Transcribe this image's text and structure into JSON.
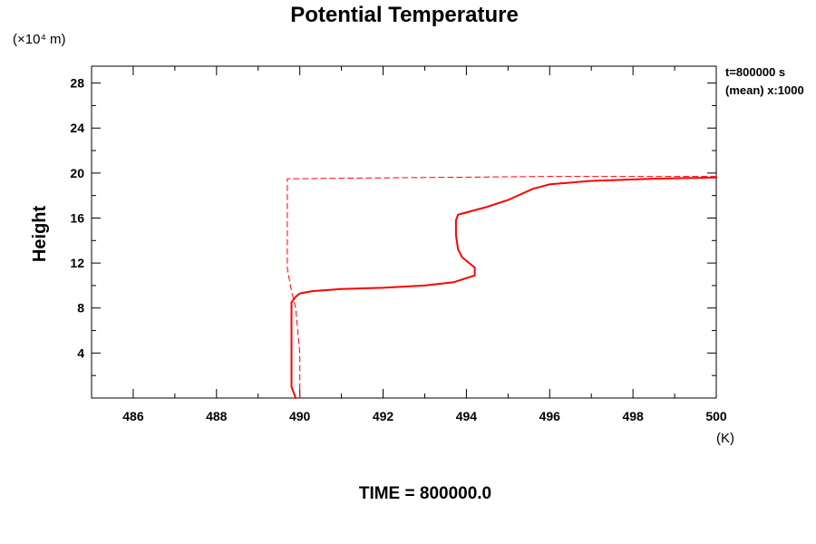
{
  "chart_data": {
    "type": "line",
    "title": "Potential Temperature",
    "ylabel": "Height",
    "y_unit_label": "(×10⁴ m)",
    "x_unit_label": "(K)",
    "xlim": [
      485,
      500
    ],
    "ylim": [
      0,
      29.5
    ],
    "x_ticks": [
      486,
      488,
      490,
      492,
      494,
      496,
      498,
      500
    ],
    "x_tick_labels": [
      "486",
      "488",
      "490",
      "492",
      "494",
      "496",
      "498",
      "500"
    ],
    "y_ticks": [
      4,
      8,
      12,
      16,
      20,
      24,
      28
    ],
    "y_tick_labels": [
      "4",
      "8",
      "12",
      "16",
      "20",
      "24",
      "28"
    ],
    "annotations": [
      "t=800000 s",
      "(mean) x:1000"
    ],
    "footer": "TIME = 800000.0",
    "grid": false,
    "colors": {
      "series": "#ff0000",
      "axes": "#000000"
    },
    "series": [
      {
        "style": "solid",
        "x": [
          489.9,
          489.8,
          489.8,
          489.8,
          489.8,
          489.9,
          490.0,
          490.3,
          491.0,
          492.0,
          493.0,
          493.7,
          494.2,
          494.2,
          493.9,
          493.8,
          493.75,
          493.75,
          493.8,
          494.5,
          495.0,
          495.3,
          495.6,
          496.0,
          497.0,
          498.5,
          500.0
        ],
        "y": [
          0.0,
          1.0,
          3.0,
          6.0,
          8.5,
          9.0,
          9.3,
          9.5,
          9.7,
          9.8,
          10.0,
          10.3,
          10.9,
          11.6,
          12.5,
          13.2,
          14.5,
          15.8,
          16.3,
          17.0,
          17.6,
          18.1,
          18.6,
          19.0,
          19.3,
          19.5,
          19.6
        ]
      },
      {
        "style": "dashed",
        "x": [
          490.0,
          490.0,
          489.9,
          489.8,
          489.7,
          489.7,
          489.7,
          490.0,
          491.5,
          493.0,
          494.5,
          496.0,
          498.0,
          500.0
        ],
        "y": [
          0.0,
          4.0,
          8.0,
          9.5,
          11.5,
          15.0,
          19.5,
          19.5,
          19.55,
          19.6,
          19.65,
          19.7,
          19.7,
          19.7
        ]
      }
    ]
  }
}
